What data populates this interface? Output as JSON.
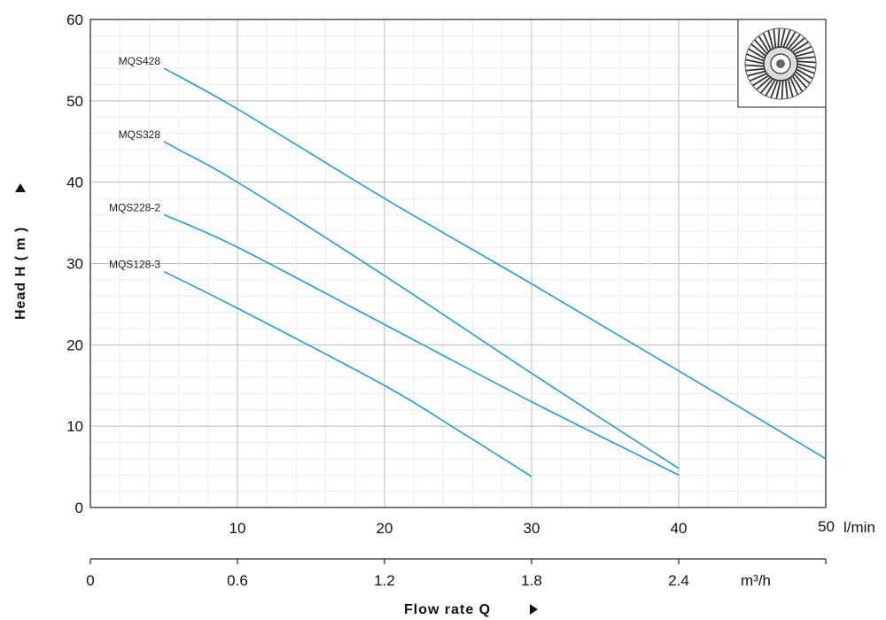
{
  "chart_data": {
    "type": "line",
    "ylabel": "Head H ( m )",
    "xlabel": "Flow rate Q",
    "x_unit_top": "l/min",
    "x_unit_bottom": "m³/h",
    "xlim": [
      0,
      50
    ],
    "ylim": [
      0,
      60
    ],
    "x_ticks_lmin": [
      "10",
      "20",
      "30",
      "40",
      "50"
    ],
    "x_ticks_m3h": [
      "0",
      "0.6",
      "1.2",
      "1.8",
      "2.4"
    ],
    "y_ticks": [
      "0",
      "10",
      "20",
      "30",
      "40",
      "50",
      "60"
    ],
    "grid": true,
    "line_color": "#1fa0d8",
    "series": [
      {
        "name": "MQS428",
        "x": [
          5,
          10,
          20,
          30,
          40,
          50
        ],
        "y": [
          54,
          49,
          38,
          27.5,
          16.8,
          6
        ]
      },
      {
        "name": "MQS328",
        "x": [
          5,
          6,
          10,
          20,
          30,
          40
        ],
        "y": [
          45,
          44,
          40,
          28.5,
          16.5,
          4.8
        ]
      },
      {
        "name": "MQS228-2",
        "x": [
          5,
          10,
          20,
          30,
          40
        ],
        "y": [
          36,
          32,
          22.5,
          13,
          4
        ]
      },
      {
        "name": "MQS128-3",
        "x": [
          5,
          10,
          20,
          25,
          30
        ],
        "y": [
          29,
          24.5,
          15,
          9.5,
          3.8
        ]
      }
    ]
  },
  "thumbnail": {
    "icon": "impeller-icon"
  }
}
